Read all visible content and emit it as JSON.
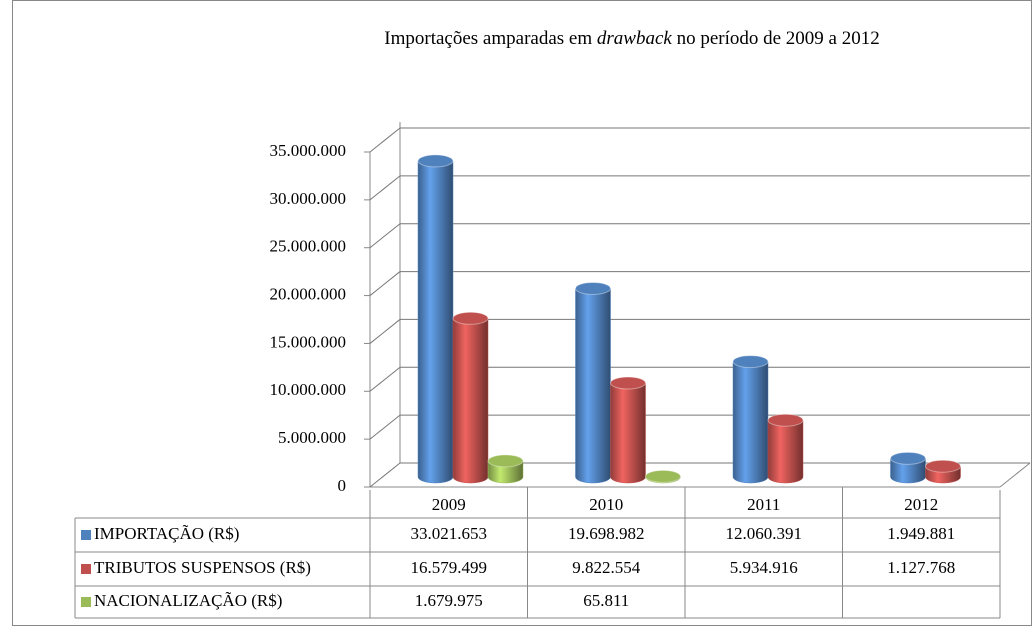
{
  "chart_data": {
    "type": "bar",
    "title": [
      "Importações amparadas em",
      "drawback",
      "no período de 2009 a 2012"
    ],
    "categories": [
      "2009",
      "2010",
      "2011",
      "2012"
    ],
    "series": [
      {
        "name": "IMPORTAÇÃO (R$)",
        "color": "#4f81bd",
        "values": [
          33021653,
          19698982,
          12060391,
          1949881
        ],
        "value_labels": [
          "33.021.653",
          "19.698.982",
          "12.060.391",
          "1.949.881"
        ]
      },
      {
        "name": "TRIBUTOS SUSPENSOS (R$)",
        "color": "#c0504d",
        "values": [
          16579499,
          9822554,
          5934916,
          1127768
        ],
        "value_labels": [
          "16.579.499",
          "9.822.554",
          "5.934.916",
          "1.127.768"
        ]
      },
      {
        "name": "NACIONALIZAÇÃO (R$)",
        "color": "#9bbb59",
        "values": [
          1679975,
          65811,
          null,
          null
        ],
        "value_labels": [
          "1.679.975",
          "65.811",
          null,
          null
        ]
      }
    ],
    "ylim": [
      0,
      35000000
    ],
    "yticks": [
      0,
      {
        "value": 5000000,
        "label": "5.000.000"
      },
      {
        "value": 10000000,
        "label": "10.000.000"
      },
      {
        "value": 15000000,
        "label": "15.000.000"
      },
      {
        "value": 20000000,
        "label": "20.000.000"
      },
      {
        "value": 25000000,
        "label": "25.000.000"
      },
      {
        "value": 30000000,
        "label": "30.000.000"
      },
      {
        "value": 35000000,
        "label": "35.000.000"
      }
    ],
    "grid": true
  }
}
